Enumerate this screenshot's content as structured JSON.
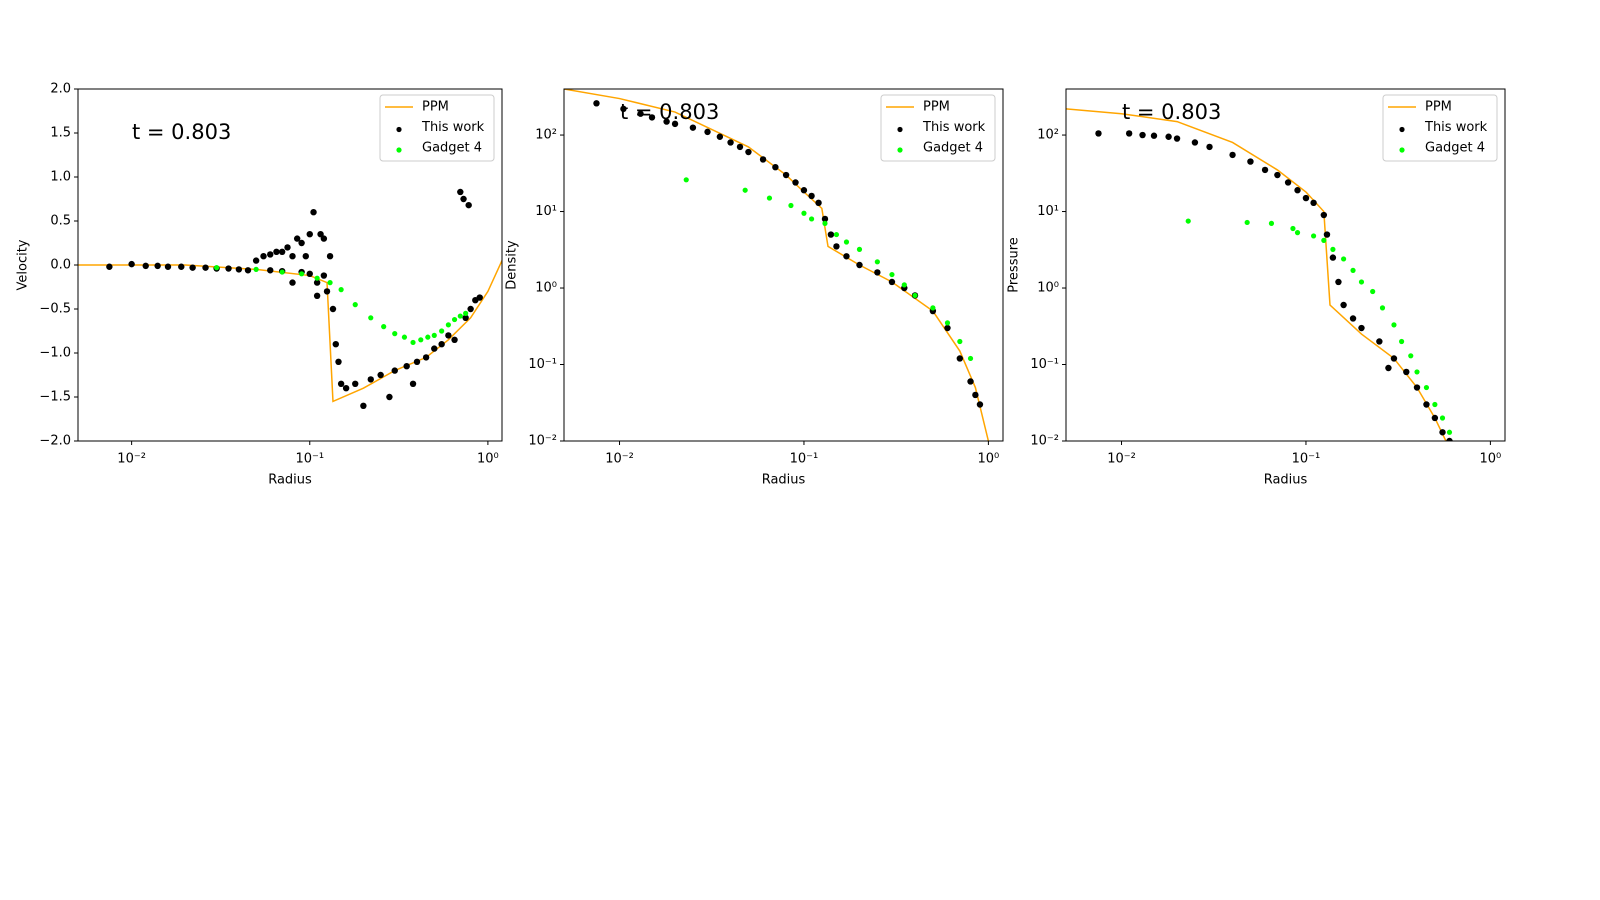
{
  "chart_data": [
    {
      "type": "line",
      "annotation": "t = 0.803",
      "x_label": "Radius",
      "y_label": "Velocity",
      "xlog": true,
      "ylog": false,
      "legend": "upper right",
      "xlim": [
        0.005,
        1.2
      ],
      "ylim": [
        -2,
        2
      ],
      "xticks": [
        {
          "value": 0.01,
          "label": "10⁻²"
        },
        {
          "value": 0.1,
          "label": "10⁻¹"
        },
        {
          "value": 1,
          "label": "10⁰"
        }
      ],
      "yticks": [
        {
          "value": -2,
          "label": "−2.0"
        },
        {
          "value": -1.5,
          "label": "−1.5"
        },
        {
          "value": -1,
          "label": "−1.0"
        },
        {
          "value": -0.5,
          "label": "−0.5"
        },
        {
          "value": 0,
          "label": "0.0"
        },
        {
          "value": 0.5,
          "label": "0.5"
        },
        {
          "value": 1,
          "label": "1.0"
        },
        {
          "value": 1.5,
          "label": "1.5"
        },
        {
          "value": 2,
          "label": "2.0"
        }
      ],
      "series": [
        {
          "name": "PPM",
          "color": "#ffa500",
          "style": "line",
          "x": [
            0.005,
            0.02,
            0.05,
            0.1,
            0.125,
            0.135,
            0.2,
            0.3,
            0.45,
            0.6,
            0.8,
            1.0,
            1.2
          ],
          "values": [
            0,
            0,
            -0.05,
            -0.12,
            -0.2,
            -1.55,
            -1.4,
            -1.2,
            -1.05,
            -0.85,
            -0.6,
            -0.3,
            0.05
          ]
        },
        {
          "name": "This work",
          "color": "#000000",
          "style": "points",
          "x": [
            0.0075,
            0.01,
            0.012,
            0.014,
            0.016,
            0.019,
            0.022,
            0.026,
            0.03,
            0.035,
            0.04,
            0.045,
            0.05,
            0.055,
            0.06,
            0.065,
            0.07,
            0.075,
            0.08,
            0.085,
            0.09,
            0.095,
            0.1,
            0.105,
            0.11,
            0.115,
            0.12,
            0.1,
            0.08,
            0.11,
            0.125,
            0.13,
            0.135,
            0.14,
            0.145,
            0.15,
            0.16,
            0.18,
            0.2,
            0.22,
            0.25,
            0.28,
            0.3,
            0.35,
            0.38,
            0.4,
            0.45,
            0.5,
            0.55,
            0.6,
            0.65,
            0.7,
            0.73,
            0.78,
            0.75,
            0.8,
            0.85,
            0.9,
            0.06,
            0.07,
            0.09,
            0.12
          ],
          "values": [
            -0.02,
            0.01,
            -0.01,
            -0.01,
            -0.02,
            -0.02,
            -0.03,
            -0.03,
            -0.04,
            -0.04,
            -0.05,
            -0.06,
            0.05,
            0.1,
            0.12,
            0.15,
            0.15,
            0.2,
            0.1,
            0.3,
            0.25,
            0.1,
            0.35,
            0.6,
            -0.2,
            0.35,
            0.3,
            -0.1,
            -0.2,
            -0.35,
            -0.3,
            0.1,
            -0.5,
            -0.9,
            -1.1,
            -1.35,
            -1.4,
            -1.35,
            -1.6,
            -1.3,
            -1.25,
            -1.5,
            -1.2,
            -1.15,
            -1.35,
            -1.1,
            -1.05,
            -0.95,
            -0.9,
            -0.8,
            -0.85,
            0.83,
            0.75,
            0.68,
            -0.6,
            -0.5,
            -0.4,
            -0.37,
            -0.06,
            -0.07,
            -0.08,
            -0.12
          ]
        },
        {
          "name": "Gadget 4",
          "color": "#00ff00",
          "style": "points",
          "x": [
            0.03,
            0.05,
            0.07,
            0.09,
            0.11,
            0.13,
            0.15,
            0.18,
            0.22,
            0.26,
            0.3,
            0.34,
            0.38,
            0.42,
            0.46,
            0.5,
            0.55,
            0.6,
            0.65,
            0.7,
            0.75
          ],
          "values": [
            -0.03,
            -0.05,
            -0.08,
            -0.1,
            -0.15,
            -0.2,
            -0.28,
            -0.45,
            -0.6,
            -0.7,
            -0.78,
            -0.82,
            -0.88,
            -0.85,
            -0.82,
            -0.8,
            -0.75,
            -0.68,
            -0.62,
            -0.58,
            -0.55
          ]
        }
      ]
    },
    {
      "type": "line",
      "annotation": "t = 0.803",
      "x_label": "Radius",
      "y_label": "Density",
      "xlog": true,
      "ylog": true,
      "legend": "upper right",
      "xlim": [
        0.005,
        1.2
      ],
      "ylim": [
        0.01,
        400
      ],
      "xticks": [
        {
          "value": 0.01,
          "label": "10⁻²"
        },
        {
          "value": 0.1,
          "label": "10⁻¹"
        },
        {
          "value": 1,
          "label": "10⁰"
        }
      ],
      "yticks": [
        {
          "value": 0.01,
          "label": "10⁻²"
        },
        {
          "value": 0.1,
          "label": "10⁻¹"
        },
        {
          "value": 1,
          "label": "10⁰"
        },
        {
          "value": 10,
          "label": "10¹"
        },
        {
          "value": 100,
          "label": "10²"
        }
      ],
      "series": [
        {
          "name": "PPM",
          "color": "#ffa500",
          "style": "line",
          "x": [
            0.005,
            0.01,
            0.02,
            0.05,
            0.08,
            0.1,
            0.125,
            0.135,
            0.2,
            0.3,
            0.5,
            0.7,
            0.85,
            1.0
          ],
          "values": [
            400,
            300,
            200,
            70,
            30,
            18,
            11,
            3.5,
            2,
            1.2,
            0.5,
            0.15,
            0.05,
            0.01
          ]
        },
        {
          "name": "This work",
          "color": "#000000",
          "style": "points",
          "x": [
            0.0075,
            0.0105,
            0.013,
            0.015,
            0.018,
            0.02,
            0.025,
            0.03,
            0.035,
            0.04,
            0.045,
            0.05,
            0.06,
            0.07,
            0.08,
            0.09,
            0.1,
            0.11,
            0.12,
            0.13,
            0.14,
            0.15,
            0.17,
            0.2,
            0.25,
            0.3,
            0.35,
            0.4,
            0.5,
            0.6,
            0.7,
            0.8,
            0.85,
            0.9
          ],
          "values": [
            260,
            220,
            190,
            170,
            150,
            140,
            125,
            110,
            95,
            80,
            70,
            60,
            48,
            38,
            30,
            24,
            19,
            16,
            13,
            8,
            5,
            3.5,
            2.6,
            2,
            1.6,
            1.2,
            1,
            0.8,
            0.5,
            0.3,
            0.12,
            0.06,
            0.04,
            0.03
          ]
        },
        {
          "name": "Gadget 4",
          "color": "#00ff00",
          "style": "points",
          "x": [
            0.023,
            0.048,
            0.065,
            0.085,
            0.1,
            0.11,
            0.13,
            0.15,
            0.17,
            0.2,
            0.25,
            0.3,
            0.35,
            0.4,
            0.5,
            0.6,
            0.7,
            0.8
          ],
          "values": [
            26,
            19,
            15,
            12,
            9.5,
            8,
            7,
            5,
            4,
            3.2,
            2.2,
            1.5,
            1.1,
            0.8,
            0.55,
            0.35,
            0.2,
            0.12
          ]
        }
      ]
    },
    {
      "type": "line",
      "annotation": "t = 0.803",
      "x_label": "Radius",
      "y_label": "Pressure",
      "xlog": true,
      "ylog": true,
      "legend": "upper right",
      "xlim": [
        0.005,
        1.2
      ],
      "ylim": [
        0.01,
        400
      ],
      "xticks": [
        {
          "value": 0.01,
          "label": "10⁻²"
        },
        {
          "value": 0.1,
          "label": "10⁻¹"
        },
        {
          "value": 1,
          "label": "10⁰"
        }
      ],
      "yticks": [
        {
          "value": 0.01,
          "label": "10⁻²"
        },
        {
          "value": 0.1,
          "label": "10⁻¹"
        },
        {
          "value": 1,
          "label": "10⁰"
        },
        {
          "value": 10,
          "label": "10¹"
        },
        {
          "value": 100,
          "label": "10²"
        }
      ],
      "series": [
        {
          "name": "PPM",
          "color": "#ffa500",
          "style": "line",
          "x": [
            0.005,
            0.01,
            0.02,
            0.04,
            0.07,
            0.1,
            0.125,
            0.135,
            0.2,
            0.3,
            0.4,
            0.5,
            0.6
          ],
          "values": [
            220,
            190,
            150,
            80,
            35,
            18,
            10,
            0.6,
            0.25,
            0.12,
            0.05,
            0.02,
            0.008
          ]
        },
        {
          "name": "This work",
          "color": "#000000",
          "style": "points",
          "x": [
            0.0075,
            0.011,
            0.013,
            0.015,
            0.018,
            0.02,
            0.025,
            0.03,
            0.04,
            0.05,
            0.06,
            0.07,
            0.08,
            0.09,
            0.1,
            0.11,
            0.125,
            0.13,
            0.14,
            0.15,
            0.16,
            0.18,
            0.2,
            0.25,
            0.28,
            0.3,
            0.35,
            0.4,
            0.45,
            0.5,
            0.55,
            0.6
          ],
          "values": [
            105,
            105,
            100,
            98,
            95,
            90,
            80,
            70,
            55,
            45,
            35,
            30,
            24,
            19,
            15,
            13,
            9,
            5,
            2.5,
            1.2,
            0.6,
            0.4,
            0.3,
            0.2,
            0.09,
            0.12,
            0.08,
            0.05,
            0.03,
            0.02,
            0.013,
            0.01
          ]
        },
        {
          "name": "Gadget 4",
          "color": "#00ff00",
          "style": "points",
          "x": [
            0.023,
            0.048,
            0.065,
            0.085,
            0.09,
            0.11,
            0.125,
            0.14,
            0.16,
            0.18,
            0.2,
            0.23,
            0.26,
            0.3,
            0.33,
            0.37,
            0.4,
            0.45,
            0.5,
            0.55,
            0.6
          ],
          "values": [
            7.5,
            7.2,
            7,
            6,
            5.3,
            4.8,
            4.2,
            3.2,
            2.4,
            1.7,
            1.2,
            0.9,
            0.55,
            0.33,
            0.2,
            0.13,
            0.08,
            0.05,
            0.03,
            0.02,
            0.013
          ]
        }
      ]
    }
  ]
}
